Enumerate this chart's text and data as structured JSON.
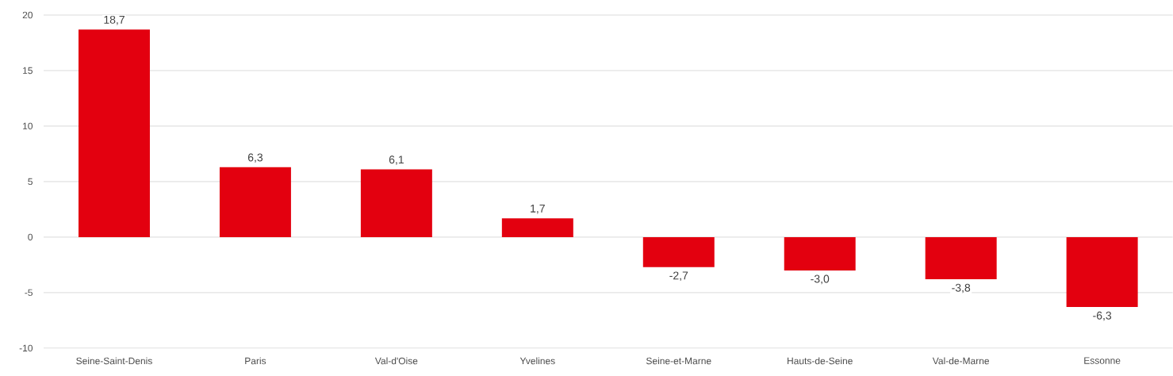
{
  "chart_data": {
    "type": "bar",
    "categories": [
      "Seine-Saint-Denis",
      "Paris",
      "Val-d'Oise",
      "Yvelines",
      "Seine-et-Marne",
      "Hauts-de-Seine",
      "Val-de-Marne",
      "Essonne"
    ],
    "values": [
      18.7,
      6.3,
      6.1,
      1.7,
      -2.7,
      -3.0,
      -3.8,
      -6.3
    ],
    "value_labels": [
      "18,7",
      "6,3",
      "6,1",
      "1,7",
      "-2,7",
      "-3,0",
      "-3,8",
      "-6,3"
    ],
    "color": "#e3000f",
    "ylim": [
      -10,
      20
    ],
    "yticks": [
      -10,
      -5,
      0,
      5,
      10,
      15,
      20
    ],
    "grid": "y"
  }
}
